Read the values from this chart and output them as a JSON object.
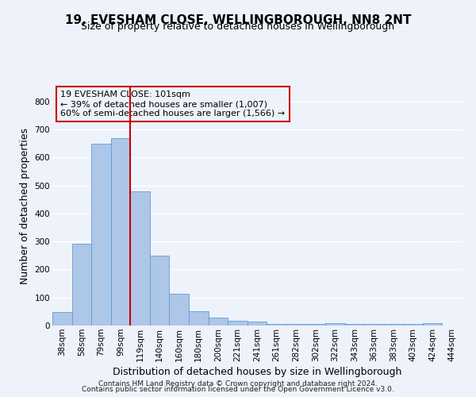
{
  "title": "19, EVESHAM CLOSE, WELLINGBOROUGH, NN8 2NT",
  "subtitle": "Size of property relative to detached houses in Wellingborough",
  "xlabel": "Distribution of detached houses by size in Wellingborough",
  "ylabel": "Number of detached properties",
  "footer1": "Contains HM Land Registry data © Crown copyright and database right 2024.",
  "footer2": "Contains public sector information licensed under the Open Government Licence v3.0.",
  "categories": [
    "38sqm",
    "58sqm",
    "79sqm",
    "99sqm",
    "119sqm",
    "140sqm",
    "160sqm",
    "180sqm",
    "200sqm",
    "221sqm",
    "241sqm",
    "261sqm",
    "282sqm",
    "302sqm",
    "322sqm",
    "343sqm",
    "363sqm",
    "383sqm",
    "403sqm",
    "424sqm",
    "444sqm"
  ],
  "values": [
    48,
    293,
    650,
    670,
    478,
    250,
    113,
    52,
    27,
    17,
    13,
    5,
    6,
    5,
    8,
    5,
    5,
    5,
    6,
    8,
    0
  ],
  "bar_color": "#aec6e8",
  "bar_edge_color": "#5a9fd4",
  "vline_x_index": 3.5,
  "vline_color": "#cc0000",
  "annotation_title": "19 EVESHAM CLOSE: 101sqm",
  "annotation_line2": "← 39% of detached houses are smaller (1,007)",
  "annotation_line3": "60% of semi-detached houses are larger (1,566) →",
  "ylim": [
    0,
    850
  ],
  "yticks": [
    0,
    100,
    200,
    300,
    400,
    500,
    600,
    700,
    800
  ],
  "bg_color": "#eef2fb",
  "grid_color": "#ffffff",
  "title_fontsize": 11,
  "subtitle_fontsize": 9,
  "axis_label_fontsize": 9,
  "tick_fontsize": 7.5
}
